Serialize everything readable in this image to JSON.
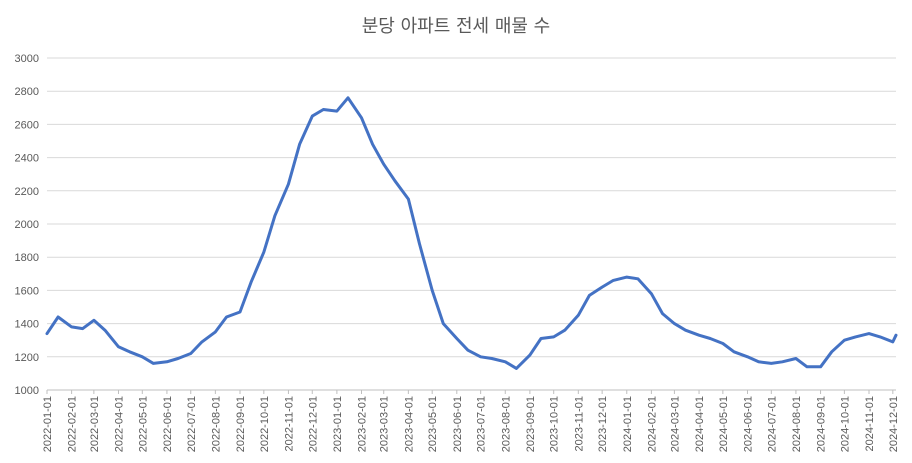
{
  "chart_data": {
    "type": "line",
    "title": "분당 아파트 전세 매물 수",
    "xlabel": "",
    "ylabel": "",
    "ylim": [
      1000,
      3000
    ],
    "yticks": [
      "1000",
      "1200",
      "1400",
      "1600",
      "1800",
      "2000",
      "2200",
      "2400",
      "2600",
      "2800",
      "3000"
    ],
    "grid": true,
    "legend": "none",
    "color": "#4472c4",
    "xticks": [
      "2022-01-01",
      "2022-02-01",
      "2022-03-01",
      "2022-04-01",
      "2022-05-01",
      "2022-06-01",
      "2022-07-01",
      "2022-08-01",
      "2022-09-01",
      "2022-10-01",
      "2022-11-01",
      "2022-12-01",
      "2023-01-01",
      "2023-02-01",
      "2023-03-01",
      "2023-04-01",
      "2023-05-01",
      "2023-06-01",
      "2023-07-01",
      "2023-08-01",
      "2023-09-01",
      "2023-10-01",
      "2023-11-01",
      "2023-12-01",
      "2024-01-01",
      "2024-02-01",
      "2024-03-01",
      "2024-04-01",
      "2024-05-01",
      "2024-06-01",
      "2024-07-01",
      "2024-08-01",
      "2024-09-01",
      "2024-10-01",
      "2024-11-01",
      "2024-12-01"
    ],
    "x": [
      "2022-01-01",
      "2022-01-15",
      "2022-02-01",
      "2022-02-15",
      "2022-03-01",
      "2022-03-15",
      "2022-04-01",
      "2022-04-15",
      "2022-05-01",
      "2022-05-15",
      "2022-06-01",
      "2022-06-15",
      "2022-07-01",
      "2022-07-15",
      "2022-08-01",
      "2022-08-15",
      "2022-09-01",
      "2022-09-15",
      "2022-10-01",
      "2022-10-15",
      "2022-11-01",
      "2022-11-15",
      "2022-12-01",
      "2022-12-15",
      "2023-01-01",
      "2023-01-15",
      "2023-02-01",
      "2023-02-15",
      "2023-03-01",
      "2023-03-15",
      "2023-04-01",
      "2023-04-15",
      "2023-05-01",
      "2023-05-15",
      "2023-06-01",
      "2023-06-15",
      "2023-07-01",
      "2023-07-15",
      "2023-08-01",
      "2023-08-15",
      "2023-09-01",
      "2023-09-15",
      "2023-10-01",
      "2023-10-15",
      "2023-11-01",
      "2023-11-15",
      "2023-12-01",
      "2023-12-15",
      "2024-01-01",
      "2024-01-15",
      "2024-02-01",
      "2024-02-15",
      "2024-03-01",
      "2024-03-15",
      "2024-04-01",
      "2024-04-15",
      "2024-05-01",
      "2024-05-15",
      "2024-06-01",
      "2024-06-15",
      "2024-07-01",
      "2024-07-15",
      "2024-08-01",
      "2024-08-15",
      "2024-09-01",
      "2024-09-15",
      "2024-10-01",
      "2024-10-15",
      "2024-11-01",
      "2024-11-15",
      "2024-12-01",
      "2024-12-05"
    ],
    "series": [
      {
        "values": [
          1340,
          1440,
          1380,
          1370,
          1420,
          1360,
          1260,
          1230,
          1200,
          1160,
          1170,
          1190,
          1220,
          1290,
          1350,
          1440,
          1470,
          1650,
          1830,
          2050,
          2240,
          2480,
          2650,
          2690,
          2680,
          2760,
          2640,
          2480,
          2360,
          2260,
          2150,
          1880,
          1600,
          1400,
          1310,
          1240,
          1200,
          1190,
          1170,
          1130,
          1210,
          1310,
          1320,
          1360,
          1450,
          1570,
          1620,
          1660,
          1680,
          1670,
          1580,
          1460,
          1400,
          1360,
          1330,
          1310,
          1280,
          1230,
          1200,
          1170,
          1160,
          1170,
          1190,
          1140,
          1140,
          1230,
          1300,
          1320,
          1340,
          1320,
          1290,
          1330
        ]
      }
    ]
  }
}
